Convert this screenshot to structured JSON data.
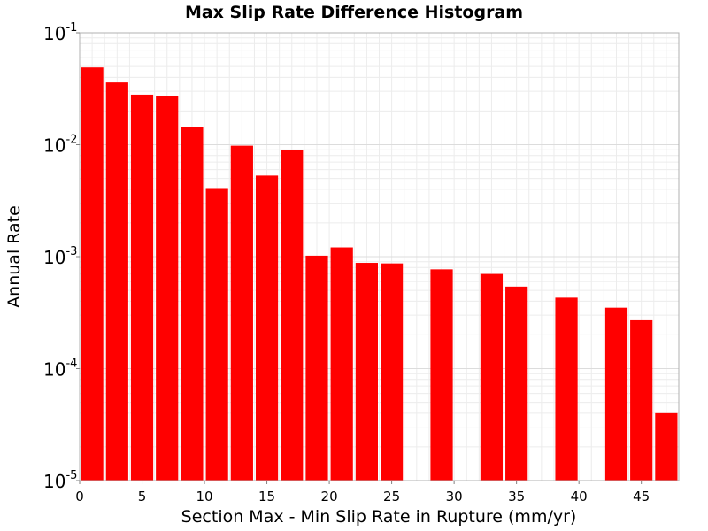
{
  "chart_data": {
    "type": "bar",
    "title": "Max Slip Rate Difference Histogram",
    "xlabel": "Section Max - Min Slip Rate in Rupture (mm/yr)",
    "ylabel": "Annual Rate",
    "xlim": [
      0,
      48
    ],
    "ylim": [
      1e-05,
      0.1
    ],
    "yscale": "log",
    "bin_width": 2,
    "x_ticks": [
      "0",
      "5",
      "10",
      "15",
      "20",
      "25",
      "30",
      "35",
      "40",
      "45"
    ],
    "y_ticks": [
      {
        "base": "10",
        "exp": "-5"
      },
      {
        "base": "10",
        "exp": "-4"
      },
      {
        "base": "10",
        "exp": "-3"
      },
      {
        "base": "10",
        "exp": "-2"
      },
      {
        "base": "10",
        "exp": "-1"
      }
    ],
    "grid": true,
    "bar_color": "#ff0000",
    "bins": [
      {
        "x": 0,
        "value": 0.049
      },
      {
        "x": 2,
        "value": 0.036
      },
      {
        "x": 4,
        "value": 0.028
      },
      {
        "x": 6,
        "value": 0.027
      },
      {
        "x": 8,
        "value": 0.0145
      },
      {
        "x": 10,
        "value": 0.0041
      },
      {
        "x": 12,
        "value": 0.0098
      },
      {
        "x": 14,
        "value": 0.0053
      },
      {
        "x": 16,
        "value": 0.009
      },
      {
        "x": 18,
        "value": 0.00102
      },
      {
        "x": 20,
        "value": 0.00121
      },
      {
        "x": 22,
        "value": 0.00088
      },
      {
        "x": 24,
        "value": 0.00087
      },
      {
        "x": 26,
        "value": null
      },
      {
        "x": 28,
        "value": 0.00077
      },
      {
        "x": 30,
        "value": null
      },
      {
        "x": 32,
        "value": 0.0007
      },
      {
        "x": 34,
        "value": 0.00054
      },
      {
        "x": 36,
        "value": null
      },
      {
        "x": 38,
        "value": 0.00043
      },
      {
        "x": 40,
        "value": null
      },
      {
        "x": 42,
        "value": 0.00035
      },
      {
        "x": 44,
        "value": 0.00027
      },
      {
        "x": 46,
        "value": 4e-05
      }
    ]
  }
}
